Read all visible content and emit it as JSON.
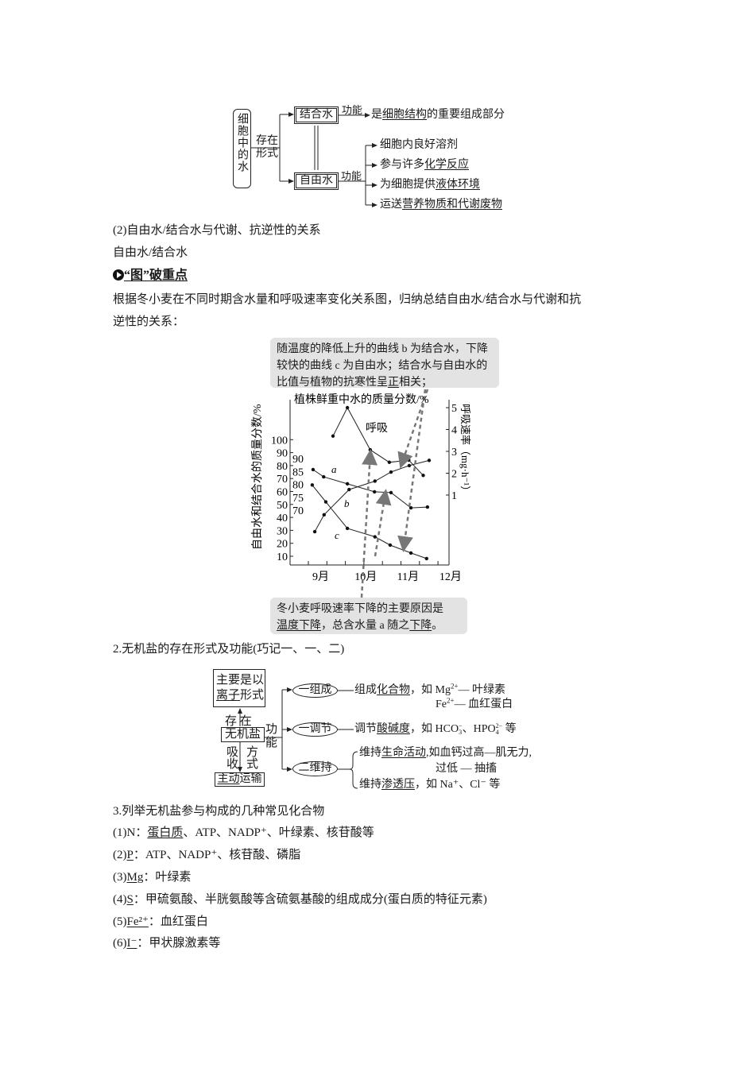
{
  "water_diagram": {
    "root": "细胞中的水",
    "existence_label": "存在形式",
    "bound_water": "结合水",
    "free_water": "自由水",
    "function_label_1": "功能",
    "function_label_2": "功能",
    "bound_function": {
      "pre": "是",
      "u": "细胞结构",
      "post": "的重要组成部分"
    },
    "free_functions": [
      {
        "pre": "细胞内良好溶剂",
        "u": "",
        "post": ""
      },
      {
        "pre": "参与许多",
        "u": "化学反应",
        "post": ""
      },
      {
        "pre": "为细胞提供",
        "u": "液体环境",
        "post": ""
      },
      {
        "pre": "运送",
        "u": "营养物质和代谢废物",
        "post": ""
      }
    ]
  },
  "text": {
    "item2": "(2)自由水/结合水与代谢、抗逆性的关系",
    "item2_sub": "自由水/结合水",
    "heading": "“图”破重点",
    "para_line1": "根据冬小麦在不同时期含水量和呼吸速率变化关系图，归纳总结自由水/结合水与代谢和抗",
    "para_line2": "逆性的关系：",
    "section2": "2.无机盐的存在形式及功能(巧记一、一、二)",
    "section3": "3.列举无机盐参与构成的几种常见化合物",
    "list": [
      {
        "pre": "(1)",
        "u": "N",
        "ul": false,
        "post": "：",
        "u2": "蛋白质",
        "tail": "、ATP、NADP⁺、叶绿素、核苷酸等"
      },
      {
        "pre": "(2)",
        "u": "P",
        "ul": true,
        "post": "：ATP、NADP⁺、核苷酸、磷脂",
        "u2": "",
        "tail": ""
      },
      {
        "pre": "(3)",
        "u": "Mg",
        "ul": true,
        "post": "：叶绿素",
        "u2": "",
        "tail": ""
      },
      {
        "pre": "(4)",
        "u": "S",
        "ul": true,
        "post": "：甲硫氨酸、半胱氨酸等含硫氨基酸的组成成分(蛋白质的特征元素)",
        "u2": "",
        "tail": ""
      },
      {
        "pre": "(5)",
        "u": "Fe²⁺",
        "ul": true,
        "post": "：血红蛋白",
        "u2": "",
        "tail": ""
      },
      {
        "pre": "(6)",
        "u": "I⁻",
        "ul": true,
        "post": "：甲状腺激素等",
        "u2": "",
        "tail": ""
      }
    ]
  },
  "callouts": {
    "top": {
      "l1": "随温度的降低上升的曲线 b 为结合水，下降",
      "l2": "较快的曲线 c 为自由水；结合水与自由水的",
      "l3a": "比值与植物的抗寒性呈",
      "l3u": "正",
      "l3b": "相关；"
    },
    "bottom": {
      "l1": "冬小麦呼吸速率下降的主要原因是",
      "l2u1": "温度下降",
      "l2m": "，总含水量 a 随之",
      "l2u2": "下降",
      "l2e": "。"
    }
  },
  "chart_data": {
    "type": "line",
    "title": "植株鲜重中水的质量分数/%",
    "ylabel_left": "自由水和结合水的质量分数/%",
    "ylabel_right": "呼吸速率（mg·h⁻¹）",
    "x_ticks": [
      "9月",
      "10月",
      "11月",
      "12月"
    ],
    "left_ticks": [
      10,
      20,
      30,
      40,
      50,
      60,
      70,
      80,
      90,
      100
    ],
    "inner_ticks": [
      70,
      75,
      80,
      85,
      90
    ],
    "right_ticks": [
      1,
      2,
      3,
      4,
      5
    ],
    "series": [
      {
        "name": "呼吸",
        "axis": "right",
        "x": [
          9.3,
          9.64,
          10.18,
          10.63,
          11.09,
          11.43
        ],
        "y": [
          3.7,
          5.0,
          3.07,
          2.5,
          2.6,
          1.9
        ]
      },
      {
        "name": "a",
        "axis": "inner",
        "x": [
          8.83,
          9.08,
          9.64,
          10.28,
          10.67,
          11.14,
          11.53
        ],
        "y": [
          85.7,
          82.9,
          80.2,
          77.1,
          76.8,
          70.9,
          71.2
        ]
      },
      {
        "name": "b",
        "axis": "left",
        "x": [
          8.87,
          9.09,
          9.68,
          10.29,
          10.67,
          11.1,
          11.57
        ],
        "y": [
          29,
          42,
          61.5,
          68,
          75,
          80,
          84
        ]
      },
      {
        "name": "c",
        "axis": "left",
        "x": [
          8.81,
          9.13,
          9.64,
          10.29,
          10.65,
          11.14,
          11.51
        ],
        "y": [
          65,
          52,
          31.5,
          25,
          18.6,
          12.5,
          8.2
        ]
      }
    ]
  },
  "salt_diagram": {
    "form_box_l1": "主要是以",
    "form_box_l2a": "离子",
    "form_box_l2b": "形式",
    "exist": "存 在",
    "center": "无机盐",
    "func_1": "功",
    "func_2": "能",
    "absorb": "吸收",
    "method": "方式",
    "transport_u": "主动",
    "transport": "运输",
    "e1": "一组成",
    "e2": "一调节",
    "e3": "二维持",
    "t1_pre": "组成",
    "t1_u": "化合物",
    "t1_post": "，如 Mg",
    "t1_sup": "2+",
    "t1_end": "— 叶绿素",
    "t1b_pre": "Fe",
    "t1b_sup": "2+",
    "t1b_end": "— 血红蛋白",
    "t2_pre": "调节",
    "t2_u": "酸碱度",
    "t2_post": "，如 HCO",
    "t2_sub1": "3",
    "t2_sup1": "−",
    "t2_mid": "、HPO",
    "t2_sub2": "4",
    "t2_sup2": "2−",
    "t2_end": " 等",
    "t3a_pre": "维持",
    "t3a_u": "生命活动",
    "t3a_post": ",如血钙过高—肌无力,",
    "t3b": "过低 — 抽搐",
    "t3c_pre": "维持",
    "t3c_u": "渗透压",
    "t3c_post": "，如 Na⁺、Cl⁻ 等"
  }
}
